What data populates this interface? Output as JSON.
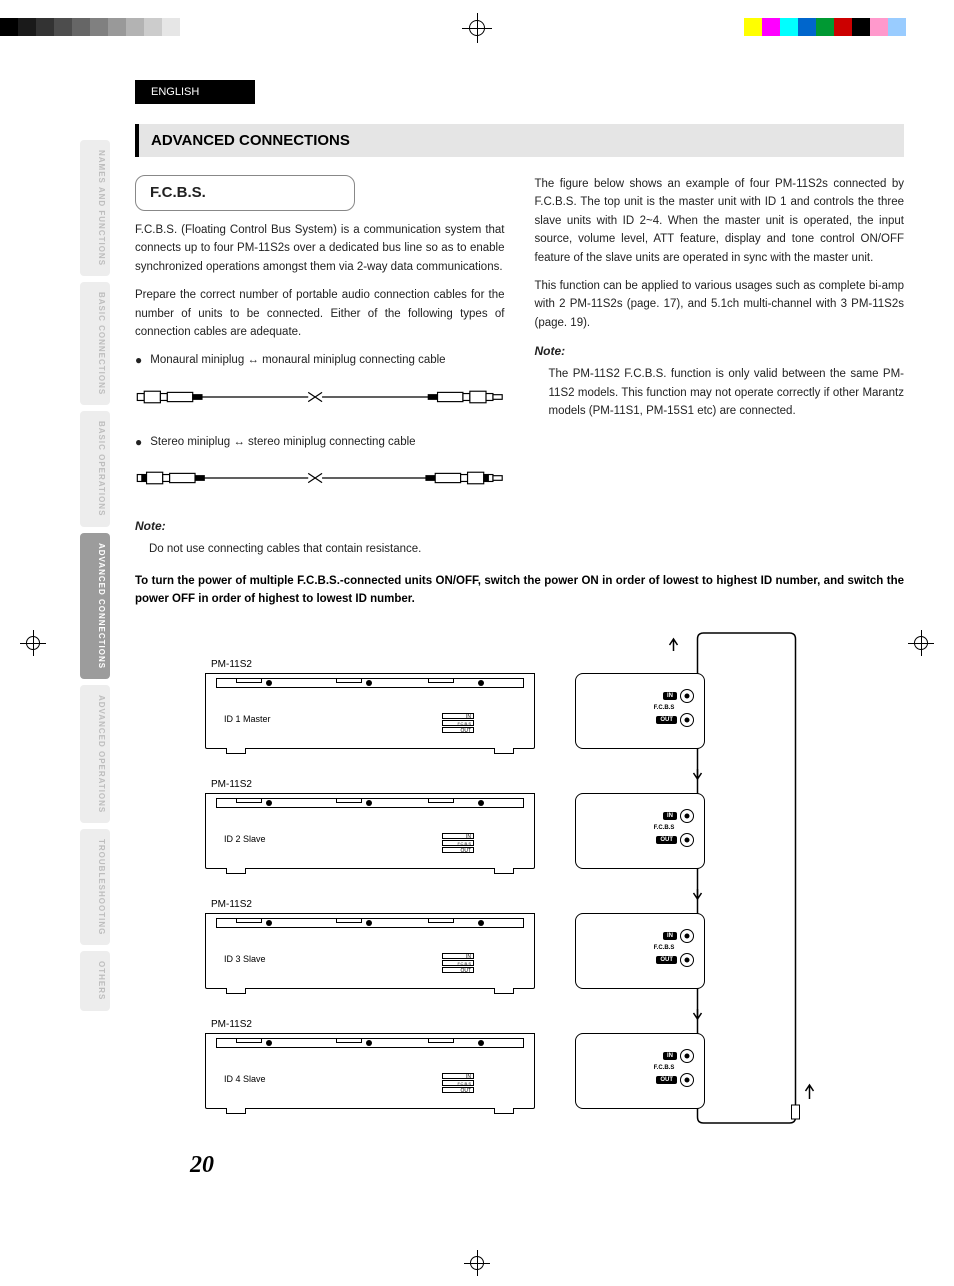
{
  "registration_colors_left": [
    "#000000",
    "#1a1a1a",
    "#333333",
    "#4d4d4d",
    "#666666",
    "#808080",
    "#999999",
    "#b3b3b3",
    "#cccccc",
    "#e6e6e6",
    "#ffffff"
  ],
  "registration_colors_right": [
    "#ffff00",
    "#ff00ff",
    "#00ffff",
    "#0066cc",
    "#009933",
    "#cc0000",
    "#000000",
    "#ff99cc",
    "#99ccff",
    "#ffffff"
  ],
  "header": {
    "language": "ENGLISH"
  },
  "title": "ADVANCED CONNECTIONS",
  "tabs": [
    {
      "label": "NAMES AND FUNCTIONS",
      "active": false
    },
    {
      "label": "BASIC CONNECTIONS",
      "active": false
    },
    {
      "label": "BASIC OPERATIONS",
      "active": false
    },
    {
      "label": "ADVANCED CONNECTIONS",
      "active": true
    },
    {
      "label": "ADVANCED OPERATIONS",
      "active": false
    },
    {
      "label": "TROUBLESHOOTING",
      "active": false
    },
    {
      "label": "OTHERS",
      "active": false
    }
  ],
  "left_col": {
    "section": "F.C.B.S.",
    "p1": "F.C.B.S. (Floating Control Bus System) is a communication system that connects up to four PM-11S2s over a dedicated bus line so as to enable synchronized operations amongst them via 2-way data communications.",
    "p2": "Prepare the correct number of portable audio connection cables for the number of units to be connected. Either of the following types of connection cables are adequate.",
    "bullet1": "Monaural miniplug ↔ monaural miniplug connecting cable",
    "bullet2": "Stereo miniplug ↔ stereo miniplug connecting cable",
    "note_label": "Note:",
    "note_text": "Do not use connecting cables that contain resistance."
  },
  "right_col": {
    "p1": "The figure below shows an example of four PM-11S2s connected by F.C.B.S. The top unit is the master unit with ID 1 and controls the three slave units with ID 2~4. When the master unit is operated, the input source, volume level, ATT feature, display and tone control ON/OFF feature of the slave units are operated in sync with the master unit.",
    "p2": "This function can be applied to various usages such as complete bi-amp with 2 PM-11S2s (page. 17), and 5.1ch multi-channel with 3 PM-11S2s (page. 19).",
    "note_label": "Note:",
    "note_text": "The PM-11S2 F.C.B.S. function is only valid between the same PM-11S2 models.  This function may not operate correctly if other Marantz models (PM-11S1, PM-15S1 etc) are connected."
  },
  "power_note": "To turn the power of multiple F.C.B.S.-connected units ON/OFF, switch the power ON in order of lowest to highest ID number, and switch the power OFF in order of highest to lowest ID number.",
  "diagram": {
    "model": "PM-11S2",
    "units": [
      {
        "id_text": "ID 1 Master"
      },
      {
        "id_text": "ID 2 Slave"
      },
      {
        "id_text": "ID 3 Slave"
      },
      {
        "id_text": "ID 4 Slave"
      }
    ],
    "jack_in": "IN",
    "jack_mid": "F.C.B.S",
    "jack_out": "OUT",
    "ctrl_labels": [
      "IN",
      "F.C.B.S",
      "OUT"
    ]
  },
  "page_number": "20",
  "colors": {
    "title_bg": "#e5e5e5",
    "tab_bg": "#ededed",
    "tab_inactive_text": "#bdbdbd",
    "tab_active_bg": "#9c9c9c",
    "tab_active_text": "#ffffff",
    "text": "#222222"
  }
}
